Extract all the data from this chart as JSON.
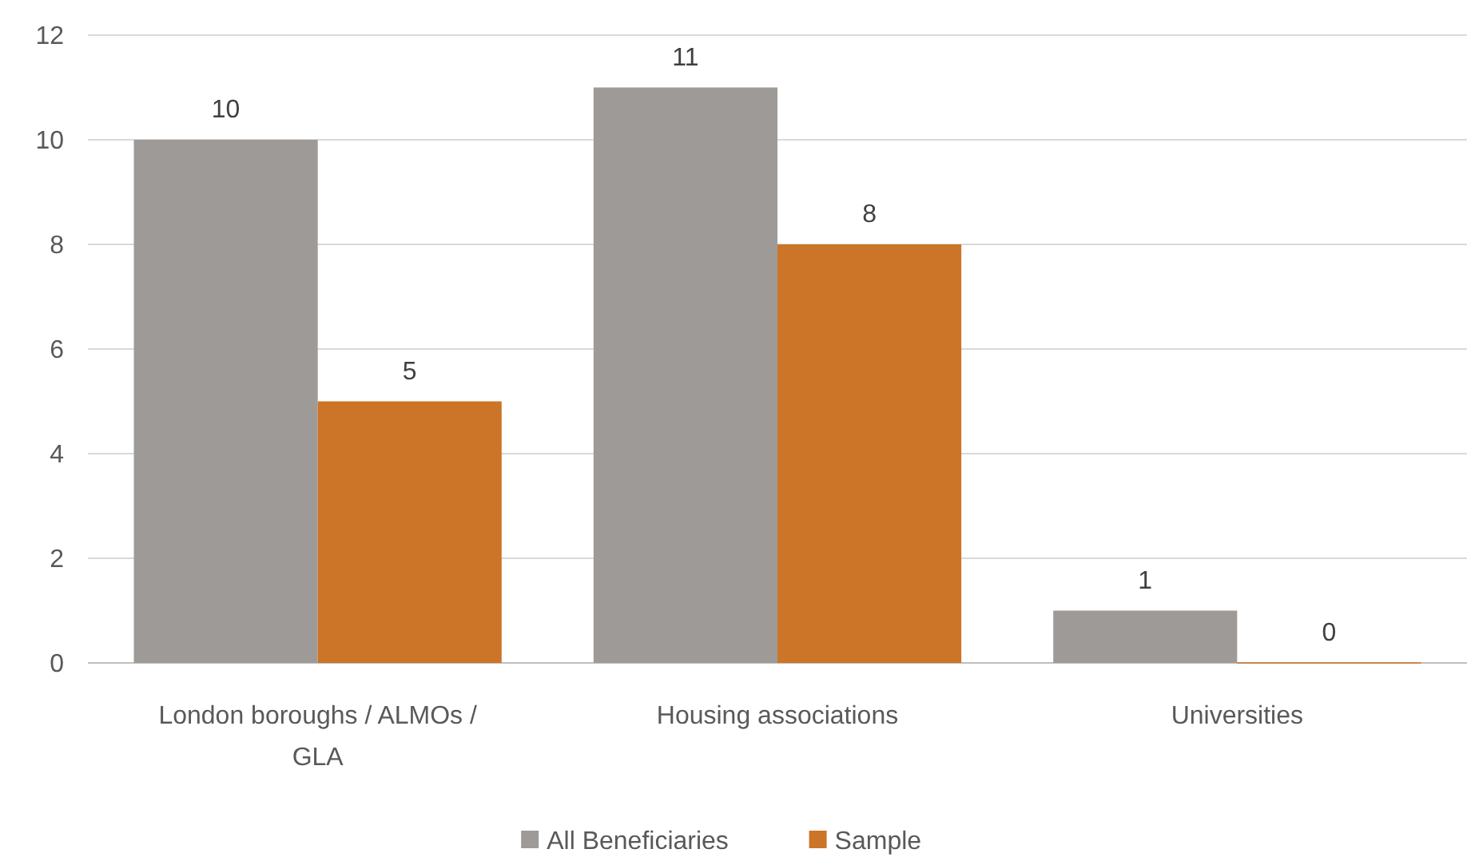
{
  "chart_data": {
    "type": "bar",
    "categories": [
      "London boroughs / ALMOs / GLA",
      "Housing associations",
      "Universities"
    ],
    "series": [
      {
        "name": "All Beneficiaries",
        "color": "#9e9a97",
        "values": [
          10,
          11,
          1
        ]
      },
      {
        "name": "Sample",
        "color": "#cc7428",
        "values": [
          5,
          8,
          0
        ]
      }
    ],
    "ylim": [
      0,
      12
    ],
    "yticks": [
      0,
      2,
      4,
      6,
      8,
      10,
      12
    ],
    "grid": "y",
    "legend": "bottom",
    "data_labels": true
  }
}
